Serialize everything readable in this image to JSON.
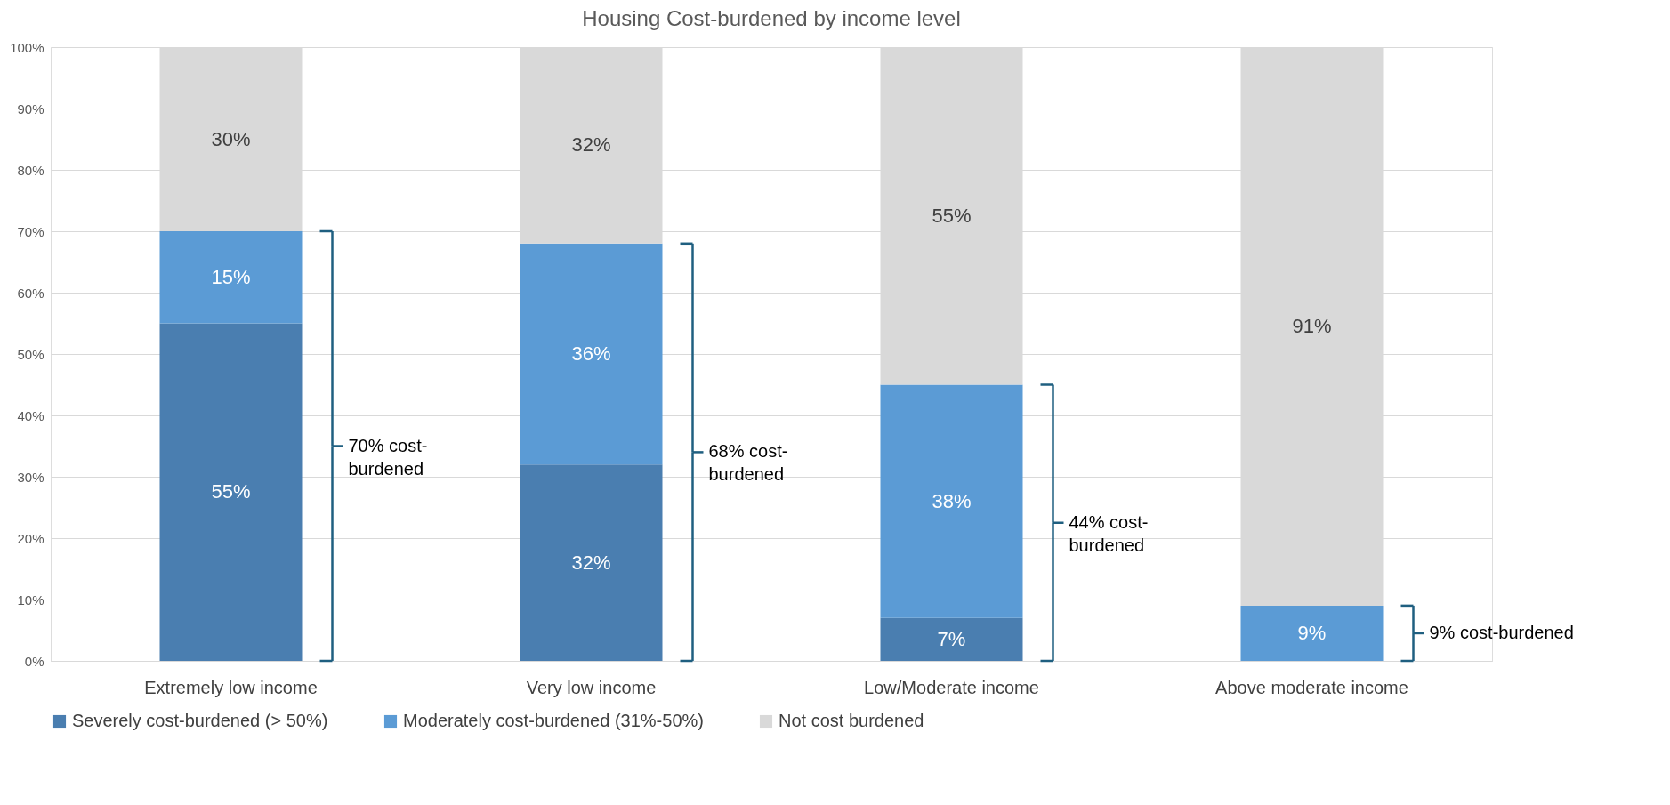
{
  "chart_data": {
    "type": "bar",
    "title": "Housing Cost-burdened by income level",
    "categories": [
      "Extremely low income",
      "Very low income",
      "Low/Moderate income",
      "Above moderate income"
    ],
    "stacked": true,
    "series": [
      {
        "name": "Severely cost-burdened (> 50%)",
        "color": "#4a7eb0",
        "values": [
          55,
          32,
          7,
          null
        ],
        "value_labels": [
          "55%",
          "32%",
          "7%",
          null
        ]
      },
      {
        "name": "Moderately cost-burdened (31%-50%)",
        "color": "#5b9bd5",
        "values": [
          15,
          36,
          38,
          9
        ],
        "value_labels": [
          "15%",
          "36%",
          "38%",
          "9%"
        ]
      },
      {
        "name": "Not cost burdened",
        "color": "#d9d9d9",
        "values": [
          30,
          32,
          55,
          91
        ],
        "value_labels": [
          "30%",
          "32%",
          "55%",
          "91%"
        ]
      }
    ],
    "ylim": [
      0,
      100
    ],
    "yticks": [
      {
        "value": 0,
        "label": "0%"
      },
      {
        "value": 10,
        "label": "10%"
      },
      {
        "value": 20,
        "label": "20%"
      },
      {
        "value": 30,
        "label": "30%"
      },
      {
        "value": 40,
        "label": "40%"
      },
      {
        "value": 50,
        "label": "50%"
      },
      {
        "value": 60,
        "label": "60%"
      },
      {
        "value": 70,
        "label": "70%"
      },
      {
        "value": 80,
        "label": "80%"
      },
      {
        "value": 90,
        "label": "90%"
      },
      {
        "value": 100,
        "label": "100%"
      }
    ],
    "grid": "y",
    "legend": "bottom",
    "annotations": [
      "70% cost-burdened",
      "68% cost-burdened",
      "44% cost-burdened",
      "9% cost-burdened"
    ]
  }
}
